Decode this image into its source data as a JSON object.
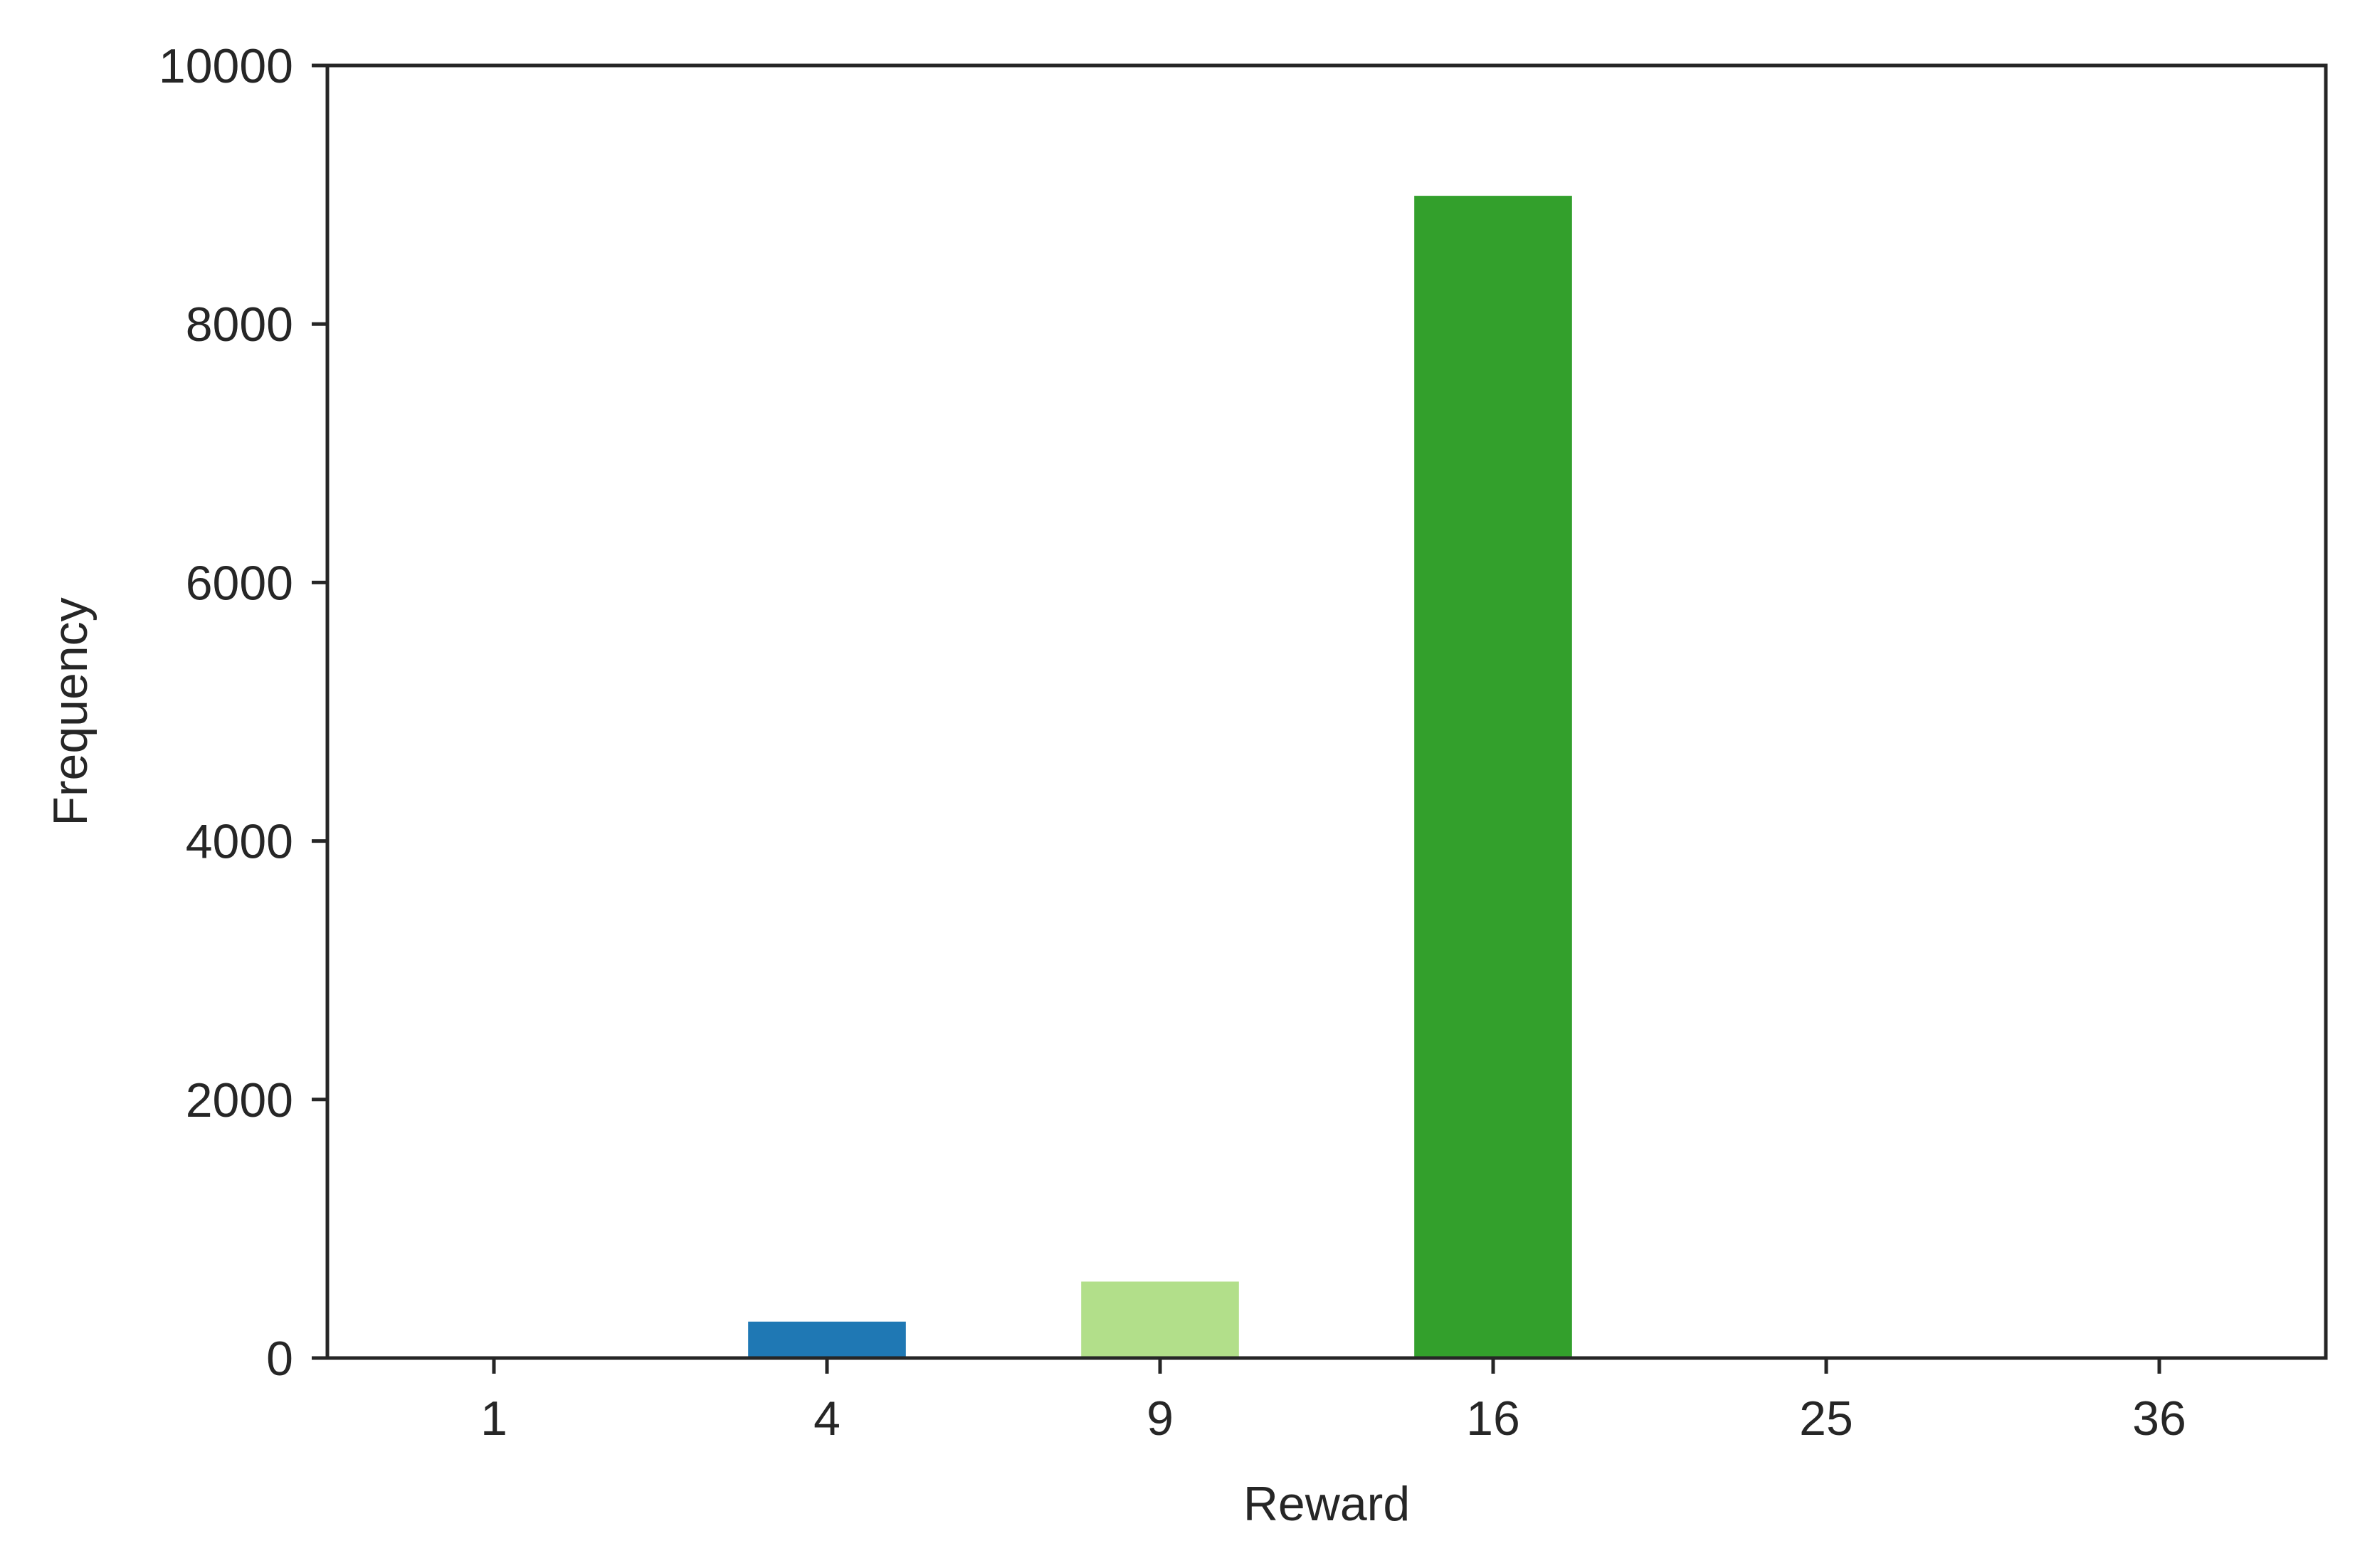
{
  "chart_data": {
    "type": "bar",
    "xlabel": "Reward",
    "ylabel": "Frequency",
    "categories": [
      "1",
      "4",
      "9",
      "16",
      "25",
      "36"
    ],
    "values": [
      0,
      290,
      600,
      9000,
      0,
      0
    ],
    "bar_colors": [
      "#a6cee3",
      "#1f78b4",
      "#b2df8a",
      "#33a02c",
      "#fb9a99",
      "#e31a1c"
    ],
    "ylim": [
      0,
      10000
    ],
    "yticks": [
      0,
      2000,
      4000,
      6000,
      8000,
      10000
    ],
    "grid": false,
    "legend": "none"
  }
}
